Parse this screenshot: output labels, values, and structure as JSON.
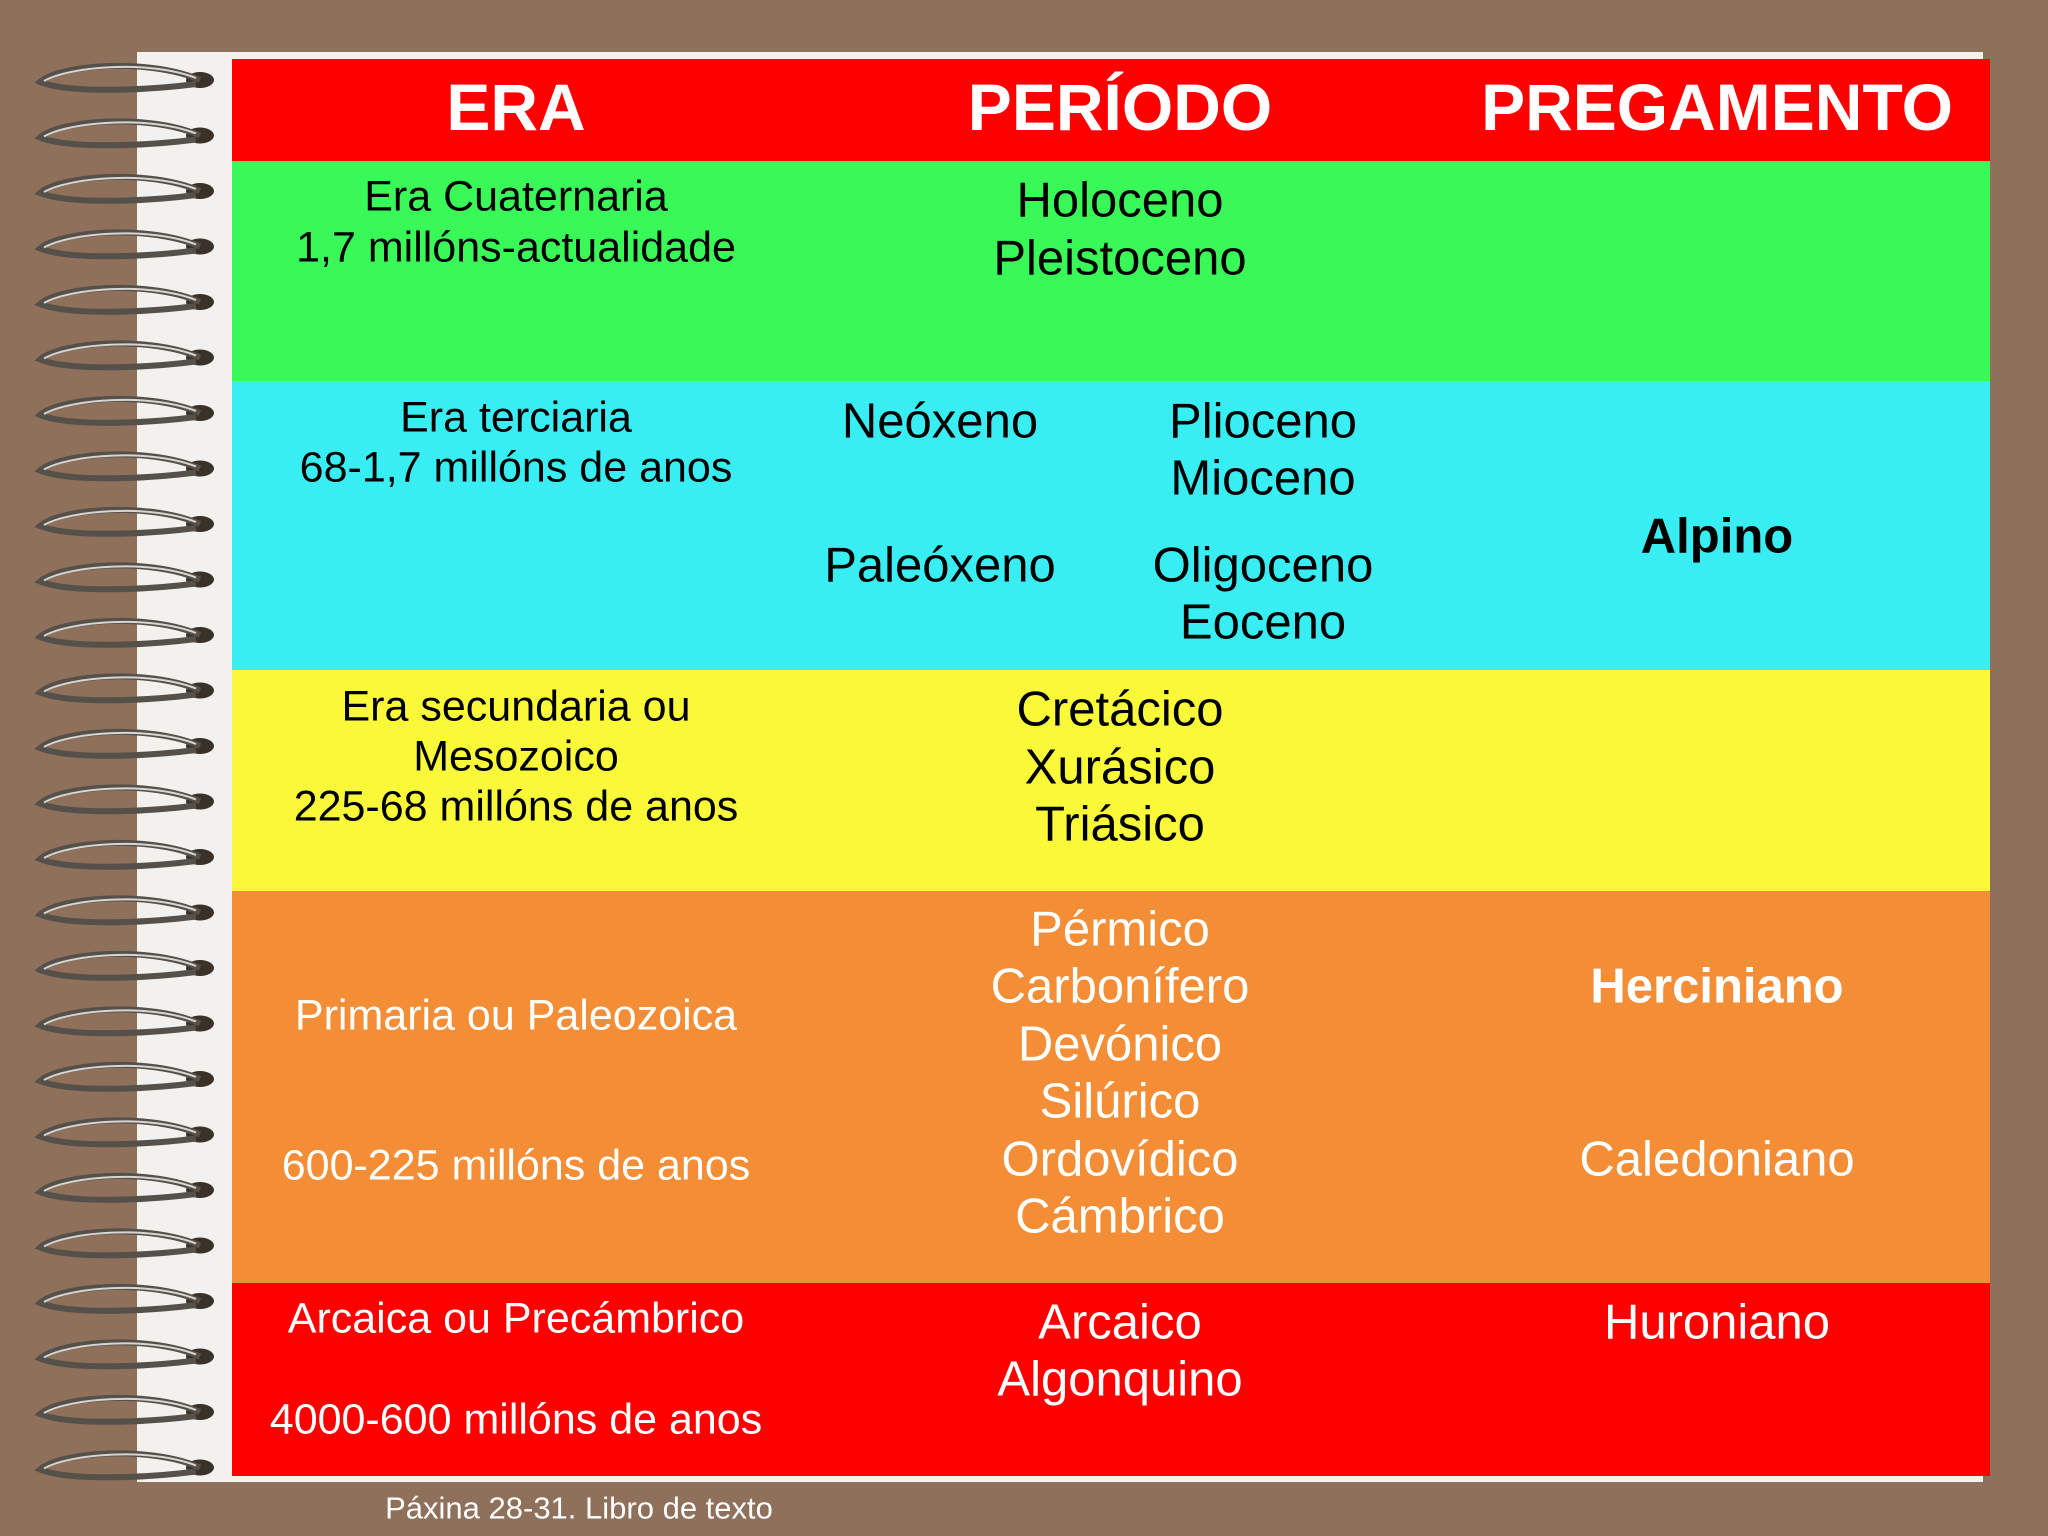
{
  "header": {
    "era": "ERA",
    "periodo": "PERÍODO",
    "pregamento": "PREGAMENTO"
  },
  "rows": [
    {
      "era": [
        "Era Cuaternaria",
        "1,7 millóns-actualidade"
      ],
      "periodo": [
        "Holoceno",
        "Pleistoceno"
      ]
    },
    {
      "era": [
        "Era terciaria",
        "68-1,7 millóns de anos"
      ],
      "subperiods": [
        {
          "name": "Neóxeno",
          "epochs": [
            "Plioceno",
            "Mioceno"
          ]
        },
        {
          "name": "Paleóxeno",
          "epochs": [
            "Oligoceno",
            "Eoceno"
          ]
        }
      ],
      "pregamento": [
        "Alpino"
      ]
    },
    {
      "era": [
        "Era secundaria ou",
        "Mesozoico",
        "225-68 millóns de anos"
      ],
      "periodo": [
        "Cretácico",
        "Xurásico",
        "Triásico"
      ]
    },
    {
      "era": [
        "Primaria ou Paleozoica",
        "600-225 millóns de anos"
      ],
      "periodo": [
        "Pérmico",
        "Carbonífero",
        "Devónico",
        "Silúrico",
        "Ordovídico",
        "Cámbrico"
      ],
      "pregamento": [
        "Herciniano",
        "Caledoniano"
      ]
    },
    {
      "era": [
        "Arcaica ou Precámbrico",
        "4000-600 millóns de anos"
      ],
      "periodo": [
        "Arcaico",
        "Algonquino"
      ],
      "pregamento": [
        "Huroniano"
      ]
    }
  ],
  "footer": "Páxina 28-31. Libro de texto"
}
